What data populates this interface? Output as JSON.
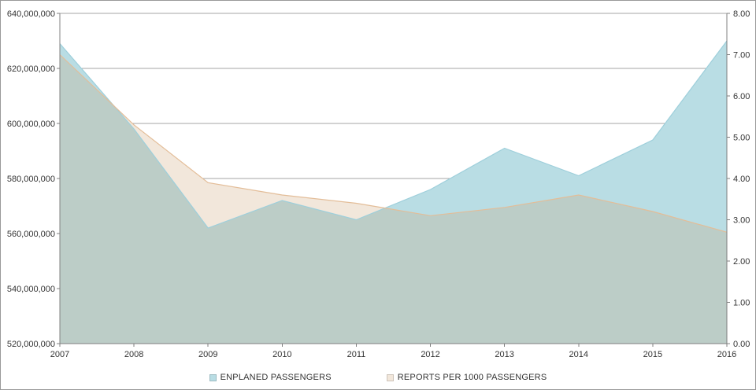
{
  "chart_data": {
    "type": "area",
    "title": "",
    "x_categories": [
      "2007",
      "2008",
      "2009",
      "2010",
      "2011",
      "2012",
      "2013",
      "2014",
      "2015",
      "2016"
    ],
    "series": [
      {
        "name": "ENPLANED PASSENGERS",
        "axis": "left",
        "fill": "#b9dde4",
        "stroke": "#9ecfdb",
        "values": [
          629000000,
          598000000,
          562000000,
          572000000,
          565000000,
          576000000,
          591000000,
          581000000,
          594000000,
          630000000
        ]
      },
      {
        "name": "REPORTS PER 1000 PASSENGERS",
        "axis": "right",
        "fill": "#f2e7db",
        "stroke": "#e3bd98",
        "values": [
          7.0,
          5.3,
          3.9,
          3.6,
          3.4,
          3.1,
          3.3,
          3.6,
          3.2,
          2.7
        ]
      }
    ],
    "overlap_fill": "#bccdc7",
    "left_axis": {
      "min": 520000000,
      "max": 640000000,
      "step": 20000000,
      "tick_labels": [
        "520,000,000",
        "540,000,000",
        "560,000,000",
        "580,000,000",
        "600,000,000",
        "620,000,000",
        "640,000,000"
      ]
    },
    "right_axis": {
      "min": 0,
      "max": 8,
      "step": 1,
      "tick_labels": [
        "0.00",
        "1.00",
        "2.00",
        "3.00",
        "4.00",
        "5.00",
        "6.00",
        "7.00",
        "8.00"
      ]
    },
    "grid": true,
    "legend_position": "bottom"
  },
  "colors": {
    "grid": "#a6a6a6",
    "axis": "#808080",
    "text": "#333333",
    "background": "#ffffff",
    "border": "#999999"
  }
}
